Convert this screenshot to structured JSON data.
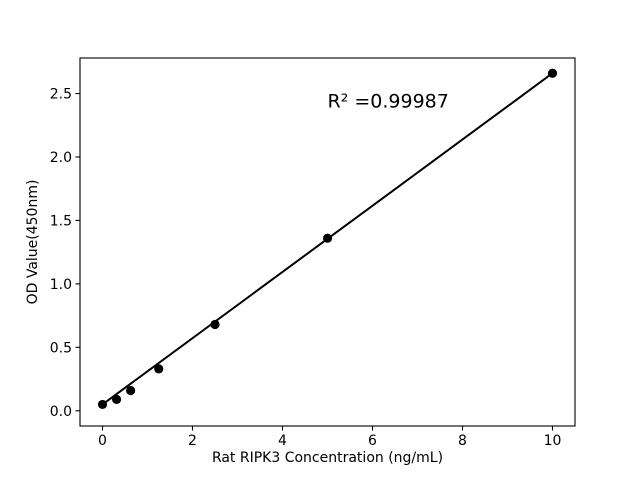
{
  "figure": {
    "background": "#ffffff"
  },
  "chart_data": {
    "type": "scatter",
    "title": "",
    "xlabel": "Rat RIPK3 Concentration (ng/mL)",
    "ylabel": "OD Value(450nm)",
    "annotation": {
      "text": "R² =0.99987",
      "x": 5.0,
      "y": 2.39
    },
    "r_squared": 0.99987,
    "x": [
      0,
      0.3125,
      0.625,
      1.25,
      2.5,
      5,
      10
    ],
    "y": [
      0.05,
      0.09,
      0.16,
      0.33,
      0.68,
      1.36,
      2.66
    ],
    "fit_line": {
      "x": [
        0,
        10
      ],
      "y": [
        0.05,
        2.66
      ]
    },
    "xticks": {
      "values": [
        0,
        2,
        4,
        6,
        8,
        10
      ],
      "labels": [
        "0",
        "2",
        "4",
        "6",
        "8",
        "10"
      ]
    },
    "yticks": {
      "values": [
        0,
        0.5,
        1,
        1.5,
        2,
        2.5
      ],
      "labels": [
        "0.0",
        "0.5",
        "1.0",
        "1.5",
        "2.0",
        "2.5"
      ]
    },
    "xlim": [
      -0.5,
      10.5
    ],
    "ylim": [
      -0.12,
      2.78
    ],
    "grid": false,
    "legend": null,
    "colors": {
      "marker": "#000000",
      "line": "#000000",
      "axis": "#000000",
      "text": "#000000",
      "background": "#ffffff"
    }
  }
}
